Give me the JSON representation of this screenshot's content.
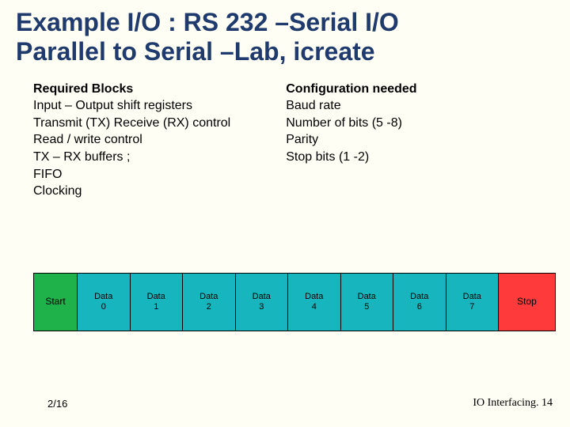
{
  "title_line1": "Example I/O : RS 232 –Serial I/O",
  "title_line2": "Parallel to Serial –Lab, icreate",
  "left": {
    "heading": "Required Blocks",
    "lines": [
      "Input – Output shift registers",
      "Transmit (TX) Receive (RX) control",
      "Read / write control",
      "TX – RX buffers ;",
      "FIFO",
      "Clocking"
    ]
  },
  "right": {
    "heading": "Configuration needed",
    "lines": [
      "Baud rate",
      "Number of bits (5 -8)",
      "Parity",
      "Stop bits (1 -2)"
    ]
  },
  "frame": {
    "start_label": "Start",
    "stop_label": "Stop",
    "data_label_top": "Data",
    "bits": [
      "0",
      "1",
      "2",
      "3",
      "4",
      "5",
      "6",
      "7"
    ],
    "colors": {
      "start": "#1fb24a",
      "data": "#17b6bf",
      "stop": "#ff3a3a",
      "border": "#000000"
    }
  },
  "footer": {
    "left": "2/16",
    "right": "IO Interfacing. 14"
  }
}
